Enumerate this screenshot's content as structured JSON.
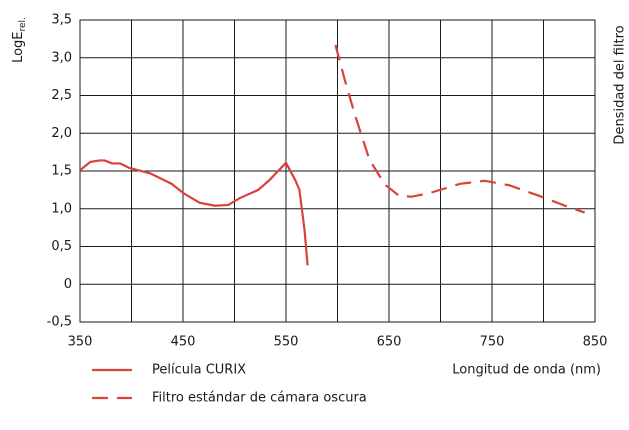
{
  "chart_data": {
    "type": "line",
    "ylabel": {
      "main": "LogE",
      "sub": "rel."
    },
    "y2label": "Densidad del filtro",
    "xlabel": "Longitud de onda (nm)",
    "xlim": [
      350,
      850
    ],
    "xticks": [
      350,
      450,
      550,
      650,
      750,
      850
    ],
    "xgrid": [
      400,
      500,
      600,
      700,
      800
    ],
    "ylim": [
      -0.5,
      3.5
    ],
    "yticks": [
      {
        "value": -0.5,
        "label": "-0,5"
      },
      0,
      {
        "value": 0.5,
        "label": "0,5"
      },
      {
        "value": 1.0,
        "label": "1,0"
      },
      {
        "value": 1.5,
        "label": "1,5"
      },
      {
        "value": 2.0,
        "label": "2,0"
      },
      {
        "value": 2.5,
        "label": "2,5"
      },
      {
        "value": 3.0,
        "label": "3,0"
      },
      {
        "value": 3.5,
        "label": "3,5"
      }
    ],
    "grid": true,
    "series": [
      {
        "name": "Película CURIX",
        "color": "#d9413b",
        "dash": false,
        "x": [
          350,
          360,
          369,
          374,
          381,
          389,
          398,
          418,
          439,
          450,
          466,
          481,
          494,
          505,
          523,
          534,
          550,
          559,
          563,
          568,
          571
        ],
        "values": [
          1.51,
          1.62,
          1.64,
          1.64,
          1.6,
          1.6,
          1.54,
          1.47,
          1.33,
          1.21,
          1.08,
          1.04,
          1.05,
          1.14,
          1.25,
          1.38,
          1.61,
          1.38,
          1.25,
          0.72,
          0.25
        ]
      },
      {
        "name": "Filtro estándar de cámara oscura",
        "color": "#d9413b",
        "dash": true,
        "x": [
          598,
          607,
          617,
          631,
          646,
          660,
          672,
          690,
          719,
          743,
          767,
          796,
          821,
          840
        ],
        "values": [
          3.17,
          2.71,
          2.24,
          1.65,
          1.32,
          1.17,
          1.16,
          1.21,
          1.33,
          1.37,
          1.31,
          1.17,
          1.04,
          0.95
        ]
      }
    ]
  }
}
